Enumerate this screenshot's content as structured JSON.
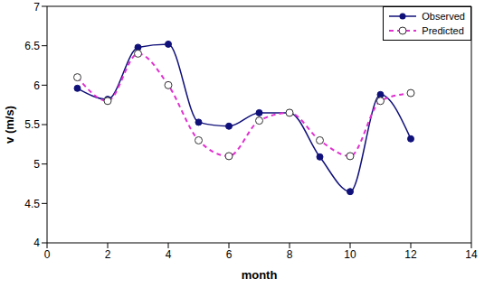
{
  "chart_data": {
    "type": "line",
    "x_label": "month",
    "y_label": "v (m/s)",
    "x": [
      1,
      2,
      3,
      4,
      5,
      6,
      7,
      8,
      9,
      10,
      11,
      12
    ],
    "series": [
      {
        "name": "Observed",
        "color": "#10107a",
        "marker": "circle",
        "line_style": "solid",
        "values": [
          5.96,
          5.82,
          6.48,
          6.52,
          5.53,
          5.48,
          5.65,
          5.65,
          5.09,
          4.65,
          5.88,
          5.32
        ]
      },
      {
        "name": "Predicted",
        "color": "#e030d0",
        "marker": "circle_open",
        "line_style": "dashed",
        "values": [
          6.1,
          5.8,
          6.4,
          6.0,
          5.3,
          5.1,
          5.55,
          5.65,
          5.3,
          5.1,
          5.8,
          5.9
        ]
      }
    ],
    "xlim": [
      0,
      14
    ],
    "xticks": [
      0,
      2,
      4,
      6,
      8,
      10,
      12,
      14
    ],
    "ylim": [
      4,
      7
    ],
    "yticks": [
      4,
      4.5,
      5,
      5.5,
      6,
      6.5,
      7
    ],
    "grid": false,
    "legend": "upper right"
  }
}
